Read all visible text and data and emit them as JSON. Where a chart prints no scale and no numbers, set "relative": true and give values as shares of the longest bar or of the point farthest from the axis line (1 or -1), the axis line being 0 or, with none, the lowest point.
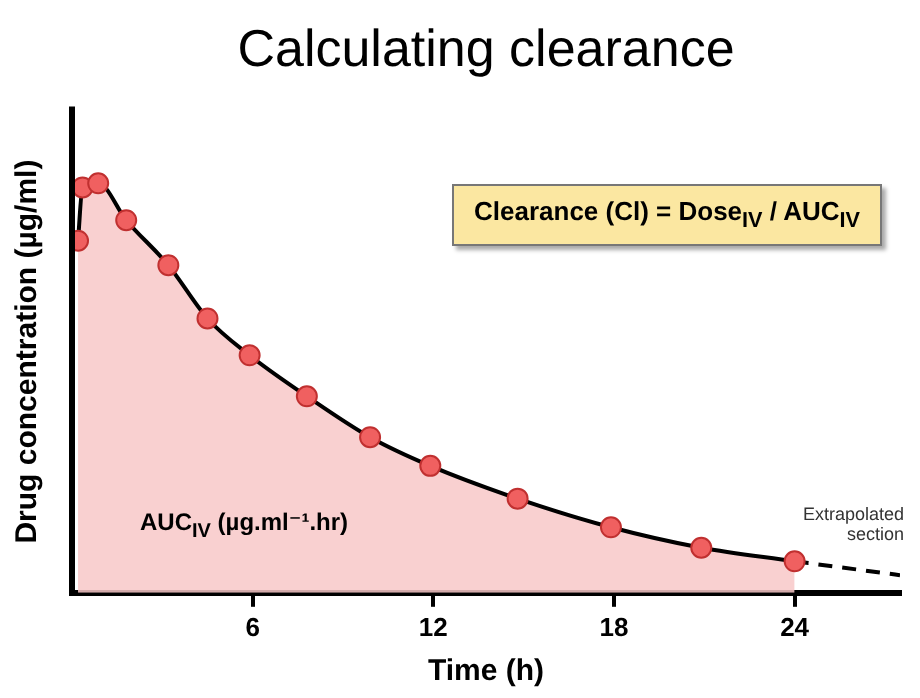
{
  "chart_data": {
    "type": "area",
    "title": "Calculating clearance",
    "xlabel": "Time (h)",
    "ylabel": "Drug concentration (µg/ml)",
    "relative": true,
    "xlim": [
      0,
      27.5
    ],
    "xticks": [
      6,
      12,
      18,
      24
    ],
    "grid": false,
    "legend": false,
    "annotations": [
      "Clearance (Cl) = Dose$_{IV}$ / AUC$_{IV}$",
      "AUC$_{IV}$ (µg.ml⁻¹.hr)",
      "Extrapolated section"
    ],
    "series": [
      {
        "color": "#000000",
        "marker": "circle",
        "colors": [
          "#f06060",
          "#f06060",
          "#f06060",
          "#f06060",
          "#f06060",
          "#f06060",
          "#f06060",
          "#f06060",
          "#f06060",
          "#f06060",
          "#f06060",
          "#f06060",
          "#f06060",
          "#f06060"
        ],
        "x": [
          0.2,
          0.35,
          0.87,
          1.8,
          3.2,
          4.5,
          5.9,
          7.8,
          9.9,
          11.9,
          14.8,
          17.9,
          20.9,
          24
        ],
        "values": [
          0.86,
          0.99,
          1,
          0.91,
          0.8,
          0.67,
          0.58,
          0.48,
          0.38,
          0.31,
          0.23,
          0.16,
          0.11,
          0.077
        ]
      },
      {
        "type": "line",
        "color": "#000000",
        "marker": "none",
        "line_style": "dashed",
        "x": [
          24,
          27.5
        ],
        "values": [
          0.077,
          0.043
        ]
      }
    ]
  }
}
